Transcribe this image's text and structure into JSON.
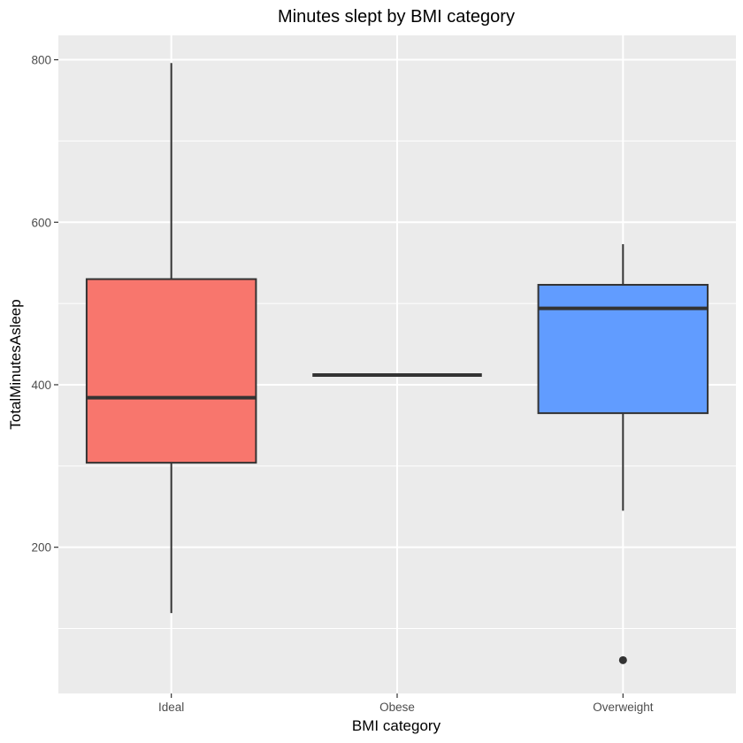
{
  "chart_data": {
    "type": "box",
    "title": "Minutes slept by BMI category",
    "xlabel": "BMI category",
    "ylabel": "TotalMinutesAsleep",
    "categories": [
      "Ideal",
      "Obese",
      "Overweight"
    ],
    "y_ticks": [
      200,
      400,
      600,
      800
    ],
    "y_tick_labels": [
      "200",
      "400",
      "600",
      "800"
    ],
    "ylim": [
      20,
      830
    ],
    "grid": true,
    "legend": "none",
    "boxes": [
      {
        "category": "Ideal",
        "min": 119,
        "q1": 304,
        "median": 384,
        "q3": 530,
        "max": 796,
        "outliers": [],
        "fill": "#F8766D"
      },
      {
        "category": "Obese",
        "min": 412,
        "q1": 412,
        "median": 412,
        "q3": 412,
        "max": 412,
        "outliers": [],
        "fill": "#00BA38"
      },
      {
        "category": "Overweight",
        "min": 245,
        "q1": 365,
        "median": 494,
        "q3": 523,
        "max": 573,
        "outliers": [
          61
        ],
        "fill": "#619CFF"
      }
    ]
  }
}
